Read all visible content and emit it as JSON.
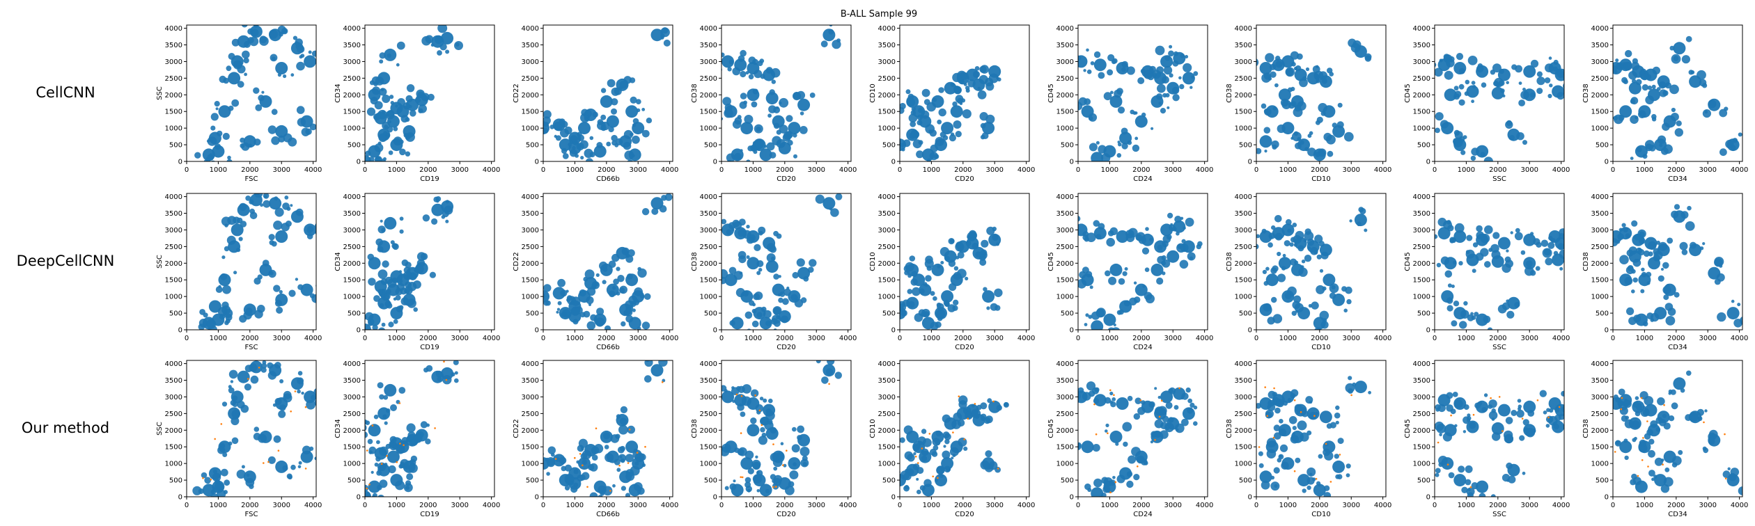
{
  "figure": {
    "title": "B-ALL Sample 99",
    "row_labels": [
      "CellCNN",
      "DeepCellCNN",
      "Our method"
    ],
    "colors": {
      "cells": "#1f77b4",
      "selected": "#ff7f0e",
      "axes": "#000000"
    }
  },
  "chart_data": {
    "type": "scatter",
    "title": "B-ALL Sample 99",
    "grid": false,
    "legend": "none",
    "rows": [
      "CellCNN",
      "DeepCellCNN",
      "Our method"
    ],
    "xlim": [
      0,
      4096
    ],
    "ylim": [
      0,
      4096
    ],
    "xticks": [
      0,
      1000,
      2000,
      3000,
      4000
    ],
    "yticks": [
      0,
      500,
      1000,
      1500,
      2000,
      2500,
      3000,
      3500,
      4000
    ],
    "panels": [
      {
        "xlabel": "FSC",
        "ylabel": "SSC",
        "points": [
          [
            700,
            200
          ],
          [
            900,
            700
          ],
          [
            1200,
            1500
          ],
          [
            1500,
            2500
          ],
          [
            1800,
            3600
          ],
          [
            2200,
            3900
          ],
          [
            2500,
            1800
          ],
          [
            3000,
            2800
          ],
          [
            3500,
            3400
          ],
          [
            3900,
            3000
          ],
          [
            1000,
            300
          ],
          [
            2000,
            600
          ],
          [
            3000,
            900
          ],
          [
            3800,
            1200
          ],
          [
            1600,
            3000
          ],
          [
            2800,
            3800
          ]
        ]
      },
      {
        "xlabel": "CD19",
        "ylabel": "CD34",
        "points": [
          [
            0,
            0
          ],
          [
            300,
            300
          ],
          [
            600,
            800
          ],
          [
            900,
            1200
          ],
          [
            1200,
            1500
          ],
          [
            1500,
            1700
          ],
          [
            1800,
            1850
          ],
          [
            1000,
            1600
          ],
          [
            500,
            1300
          ],
          [
            300,
            2000
          ],
          [
            600,
            2500
          ],
          [
            800,
            3200
          ],
          [
            2600,
            3700
          ],
          [
            2300,
            3600
          ],
          [
            1000,
            500
          ],
          [
            1400,
            900
          ]
        ]
      },
      {
        "xlabel": "CD66b",
        "ylabel": "CD22",
        "points": [
          [
            0,
            1000
          ],
          [
            500,
            1100
          ],
          [
            1000,
            700
          ],
          [
            1500,
            1400
          ],
          [
            2000,
            1800
          ],
          [
            2500,
            2300
          ],
          [
            2800,
            1500
          ],
          [
            3000,
            1000
          ],
          [
            2600,
            600
          ],
          [
            1800,
            300
          ],
          [
            1000,
            400
          ],
          [
            3600,
            3800
          ],
          [
            2200,
            1200
          ],
          [
            1300,
            1000
          ],
          [
            700,
            500
          ],
          [
            2900,
            200
          ]
        ]
      },
      {
        "xlabel": "CD20",
        "ylabel": "CD38",
        "points": [
          [
            200,
            3000
          ],
          [
            600,
            2900
          ],
          [
            1000,
            2800
          ],
          [
            1500,
            2600
          ],
          [
            300,
            1500
          ],
          [
            800,
            1000
          ],
          [
            1200,
            500
          ],
          [
            1800,
            1200
          ],
          [
            2000,
            400
          ],
          [
            500,
            200
          ],
          [
            1000,
            2000
          ],
          [
            1600,
            1900
          ],
          [
            2300,
            1000
          ],
          [
            3400,
            3800
          ],
          [
            2600,
            1700
          ],
          [
            1400,
            200
          ]
        ]
      },
      {
        "xlabel": "CD20",
        "ylabel": "CD10",
        "points": [
          [
            0,
            500
          ],
          [
            400,
            800
          ],
          [
            800,
            1200
          ],
          [
            1200,
            1800
          ],
          [
            1600,
            2200
          ],
          [
            2000,
            2500
          ],
          [
            2300,
            2600
          ],
          [
            2500,
            2300
          ],
          [
            1800,
            1500
          ],
          [
            1300,
            500
          ],
          [
            900,
            200
          ],
          [
            600,
            1500
          ],
          [
            3000,
            2700
          ],
          [
            2800,
            1000
          ],
          [
            400,
            1800
          ],
          [
            1500,
            1000
          ]
        ]
      },
      {
        "xlabel": "CD24",
        "ylabel": "CD45",
        "points": [
          [
            100,
            3000
          ],
          [
            700,
            2900
          ],
          [
            1400,
            2800
          ],
          [
            2200,
            2700
          ],
          [
            2800,
            3000
          ],
          [
            3200,
            3100
          ],
          [
            3000,
            2200
          ],
          [
            2500,
            1800
          ],
          [
            2000,
            1200
          ],
          [
            1500,
            700
          ],
          [
            1000,
            300
          ],
          [
            600,
            100
          ],
          [
            300,
            1500
          ],
          [
            1200,
            1800
          ],
          [
            3500,
            2500
          ],
          [
            2600,
            2500
          ]
        ]
      },
      {
        "xlabel": "CD10",
        "ylabel": "CD38",
        "points": [
          [
            300,
            2800
          ],
          [
            700,
            2900
          ],
          [
            1000,
            3000
          ],
          [
            1400,
            2600
          ],
          [
            1800,
            2500
          ],
          [
            2200,
            2400
          ],
          [
            500,
            1500
          ],
          [
            1000,
            1000
          ],
          [
            1500,
            500
          ],
          [
            2000,
            200
          ],
          [
            2300,
            1500
          ],
          [
            900,
            2000
          ],
          [
            3300,
            3300
          ],
          [
            2600,
            900
          ],
          [
            300,
            600
          ],
          [
            1300,
            1800
          ]
        ]
      },
      {
        "xlabel": "SSC",
        "ylabel": "CD45",
        "points": [
          [
            300,
            2900
          ],
          [
            800,
            2800
          ],
          [
            1500,
            2700
          ],
          [
            2200,
            2600
          ],
          [
            3000,
            2700
          ],
          [
            3800,
            2800
          ],
          [
            4000,
            2600
          ],
          [
            500,
            2000
          ],
          [
            1200,
            2100
          ],
          [
            2000,
            2050
          ],
          [
            3000,
            2000
          ],
          [
            3900,
            2100
          ],
          [
            400,
            1000
          ],
          [
            800,
            500
          ],
          [
            1500,
            300
          ],
          [
            2500,
            800
          ]
        ]
      },
      {
        "xlabel": "CD34",
        "ylabel": "CD38",
        "points": [
          [
            100,
            2800
          ],
          [
            400,
            2900
          ],
          [
            800,
            2700
          ],
          [
            1200,
            2600
          ],
          [
            1600,
            2400
          ],
          [
            1800,
            1200
          ],
          [
            1500,
            500
          ],
          [
            900,
            300
          ],
          [
            400,
            1500
          ],
          [
            1000,
            1500
          ],
          [
            1300,
            2000
          ],
          [
            2600,
            2400
          ],
          [
            3200,
            1700
          ],
          [
            3800,
            500
          ],
          [
            2100,
            3400
          ],
          [
            700,
            2200
          ]
        ]
      }
    ]
  }
}
